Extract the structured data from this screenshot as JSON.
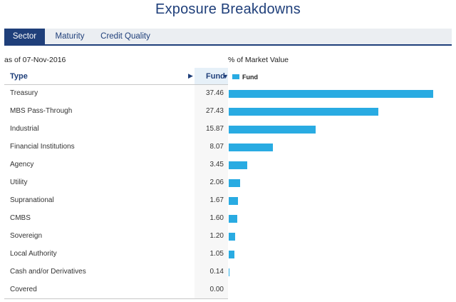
{
  "title": "Exposure Breakdowns",
  "tabs": [
    {
      "label": "Sector",
      "active": true
    },
    {
      "label": "Maturity",
      "active": false
    },
    {
      "label": "Credit Quality",
      "active": false
    }
  ],
  "as_of": "as of 07-Nov-2016",
  "chart_label": "% of Market Value",
  "table": {
    "col_type": "Type",
    "col_fund": "Fund",
    "sort_arrow": "▶",
    "fund_caret": "▼"
  },
  "legend": {
    "label": "Fund",
    "color": "#29abe2"
  },
  "colors": {
    "accent": "#1f3f7a",
    "bar": "#29abe2"
  },
  "chart_data": {
    "type": "bar",
    "orientation": "horizontal",
    "categories": [
      "Treasury",
      "MBS Pass-Through",
      "Industrial",
      "Financial Institutions",
      "Agency",
      "Utility",
      "Supranational",
      "CMBS",
      "Sovereign",
      "Local Authority",
      "Cash and/or Derivatives",
      "Covered"
    ],
    "value_labels": [
      "37.46",
      "27.43",
      "15.87",
      "8.07",
      "3.45",
      "2.06",
      "1.67",
      "1.60",
      "1.20",
      "1.05",
      "0.14",
      "0.00"
    ],
    "series": [
      {
        "name": "Fund",
        "values": [
          37.46,
          27.43,
          15.87,
          8.07,
          3.45,
          2.06,
          1.67,
          1.6,
          1.2,
          1.05,
          0.14,
          0.0
        ]
      }
    ],
    "ylabel": "% of Market Value",
    "xlim": [
      0,
      37.46
    ],
    "legend": "top-left"
  }
}
